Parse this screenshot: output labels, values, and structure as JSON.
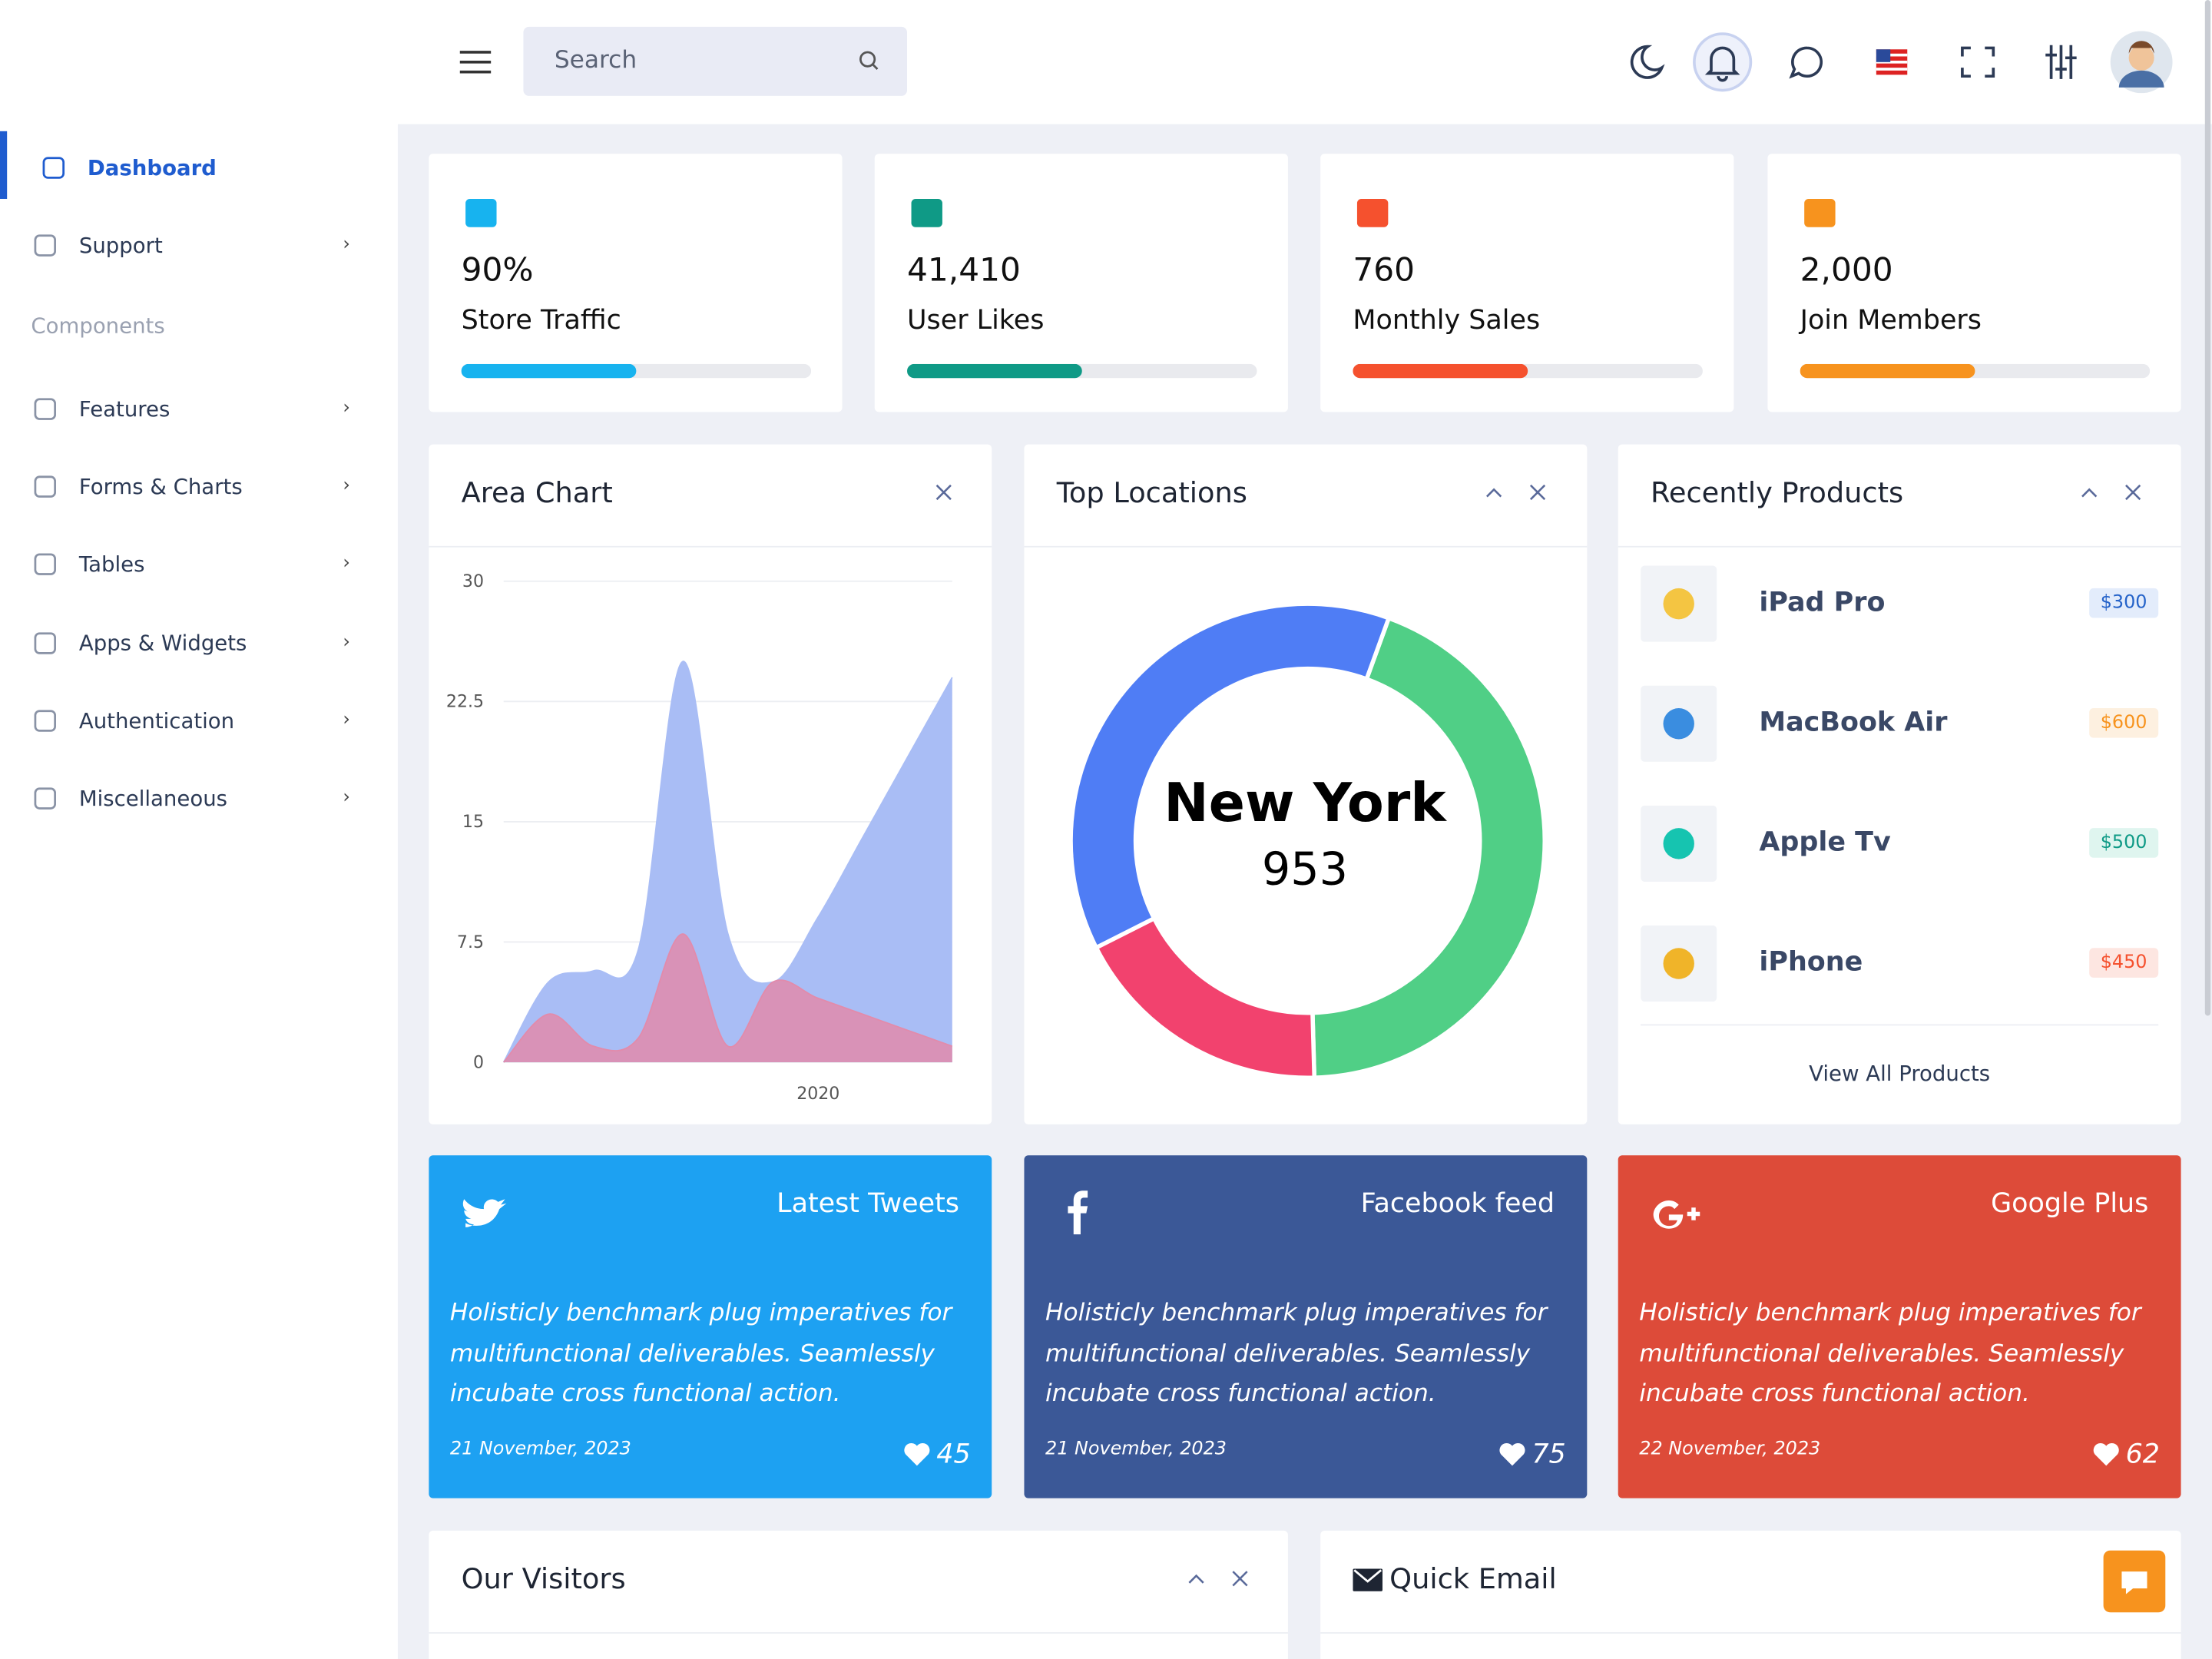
{
  "sidebar": {
    "menu": [
      "Dashboard",
      "Support"
    ],
    "section": "Components",
    "components": [
      "Features",
      "Forms & Charts",
      "Tables",
      "Apps & Widgets",
      "Authentication",
      "Miscellaneous"
    ]
  },
  "search_placeholder": "Search",
  "stats": [
    {
      "value": "90%",
      "label": "Store Traffic",
      "progress": 50,
      "color": "#17b3ef"
    },
    {
      "value": "41,410",
      "label": "User Likes",
      "progress": 50,
      "color": "#0f9a86"
    },
    {
      "value": "760",
      "label": "Monthly Sales",
      "progress": 50,
      "color": "#f5512e"
    },
    {
      "value": "2,000",
      "label": "Join Members",
      "progress": 50,
      "color": "#f7931e"
    }
  ],
  "area_chart": {
    "title": "Area Chart",
    "ylim": [
      0,
      30
    ],
    "yticks": [
      0,
      7.5,
      15,
      22.5,
      30
    ],
    "x_label": "2020",
    "series": [
      {
        "color": "#a9bdf5",
        "values": [
          0,
          5,
          5.7,
          7,
          25,
          8,
          5,
          9,
          14,
          19,
          24
        ]
      },
      {
        "color": "#e28bab",
        "values": [
          0,
          3,
          1,
          1.5,
          8,
          1,
          5,
          4,
          3,
          2,
          1
        ]
      }
    ]
  },
  "donut": {
    "title": "Top Locations",
    "center_label": "New York",
    "center_value": "953",
    "segments": [
      {
        "color": "#50cf86",
        "value": 44
      },
      {
        "color": "#f2426e",
        "value": 18
      },
      {
        "color": "#4f7df5",
        "value": 38
      }
    ]
  },
  "products": {
    "title": "Recently Products",
    "items": [
      {
        "name": "iPad Pro",
        "price": "$300",
        "color": "#2563c9",
        "bg": "#e3ecfb"
      },
      {
        "name": "MacBook Air",
        "price": "$600",
        "color": "#f7931e",
        "bg": "#fdf0e0"
      },
      {
        "name": "Apple Tv",
        "price": "$500",
        "color": "#0f9a86",
        "bg": "#dff5ef"
      },
      {
        "name": "iPhone",
        "price": "$450",
        "color": "#f5512e",
        "bg": "#fde6e1"
      }
    ],
    "link": "View All Products"
  },
  "social": [
    {
      "title": "Latest Tweets",
      "text": "Holisticly benchmark plug imperatives for multifunctional deliverables. Seamlessly incubate cross functional action.",
      "date": "21 November, 2023",
      "likes": "45",
      "color": "#1da1f2"
    },
    {
      "title": "Facebook feed",
      "text": "Holisticly benchmark plug imperatives for multifunctional deliverables. Seamlessly incubate cross functional action.",
      "date": "21 November, 2023",
      "likes": "75",
      "color": "#3b5897"
    },
    {
      "title": "Google Plus",
      "text": "Holisticly benchmark plug imperatives for multifunctional deliverables. Seamlessly incubate cross functional action.",
      "date": "22 November, 2023",
      "likes": "62",
      "color": "#dd4b39"
    }
  ],
  "bottom": {
    "visitors_title": "Our Visitors",
    "email_title": "Quick Email"
  }
}
